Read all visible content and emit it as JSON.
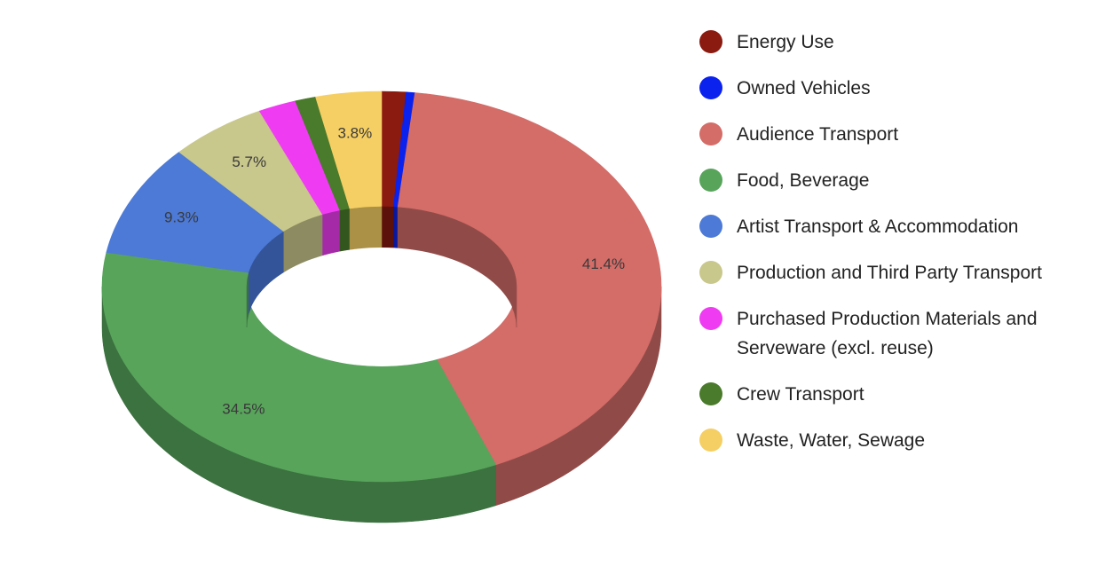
{
  "chart_data": {
    "type": "pie",
    "variant": "3d-donut",
    "title": "",
    "legend_position": "right",
    "slices": [
      {
        "name": "Energy Use",
        "value": 1.4,
        "label": "",
        "color": "#8b1a10",
        "side": "#5c110a"
      },
      {
        "name": "Owned Vehicles",
        "value": 0.5,
        "label": "",
        "color": "#0b22ee",
        "side": "#0a189e"
      },
      {
        "name": "Audience Transport",
        "value": 41.4,
        "label": "41.4%",
        "color": "#d46c68",
        "side": "#904b48"
      },
      {
        "name": "Food, Beverage",
        "value": 34.5,
        "label": "34.5%",
        "color": "#58a45b",
        "side": "#3c7140"
      },
      {
        "name": "Artist Transport & Accommodation",
        "value": 9.3,
        "label": "9.3%",
        "color": "#4c7ad6",
        "side": "#34549a"
      },
      {
        "name": "Production and Third Party Transport",
        "value": 5.7,
        "label": "5.7%",
        "color": "#c8c78c",
        "side": "#8c8b62"
      },
      {
        "name": "Purchased Production Materials and Serveware (excl. reuse)",
        "value": 2.2,
        "label": "",
        "color": "#ef3cf3",
        "side": "#a52aa8"
      },
      {
        "name": "Crew Transport",
        "value": 1.2,
        "label": "",
        "color": "#4a7a2b",
        "side": "#33551e"
      },
      {
        "name": "Waste, Water, Sewage",
        "value": 3.8,
        "label": "3.8%",
        "color": "#f5cf63",
        "side": "#ab9145"
      }
    ]
  }
}
